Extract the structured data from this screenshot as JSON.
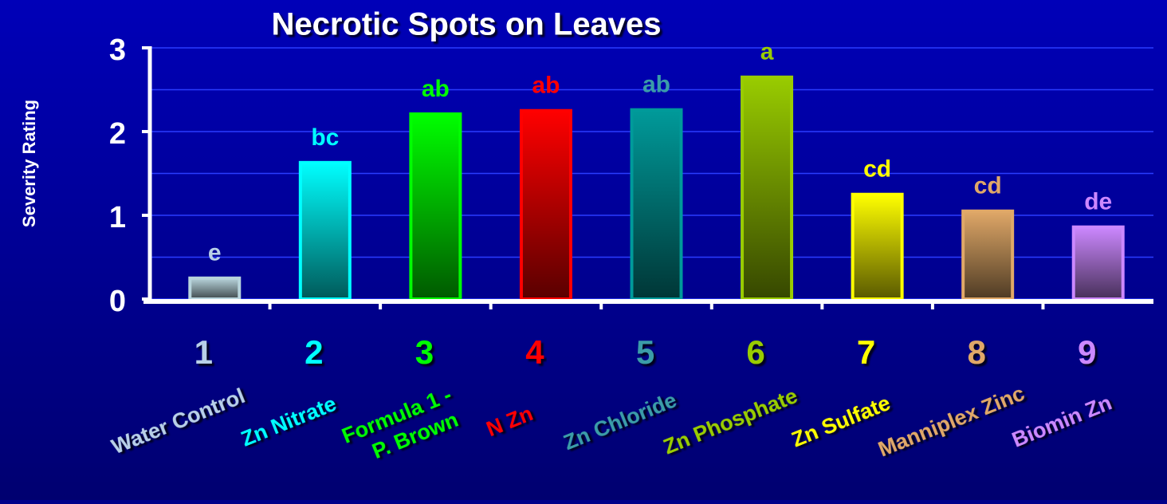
{
  "chart_data": {
    "type": "bar",
    "title": "Necrotic Spots on Leaves",
    "y_label": "Severity Rating",
    "categories": [
      "1",
      "2",
      "3",
      "4",
      "5",
      "6",
      "7",
      "8",
      "9"
    ],
    "names": [
      [
        "Water Control"
      ],
      [
        "Zn Nitrate"
      ],
      [
        "Formula 1 -",
        "P. Brown"
      ],
      [
        "N Zn"
      ],
      [
        "Zn Chloride"
      ],
      [
        "Zn Phosphate"
      ],
      [
        "Zn Sulfate"
      ],
      [
        "Manniplex Zinc"
      ],
      [
        "Biomin Zn"
      ]
    ],
    "values": [
      0.25,
      1.63,
      2.21,
      2.25,
      2.26,
      2.65,
      1.25,
      1.05,
      0.86
    ],
    "annotations": [
      "e",
      "bc",
      "ab",
      "ab",
      "ab",
      "a",
      "cd",
      "cd",
      "de"
    ],
    "colors": [
      "#b8d4dc",
      "#00ffff",
      "#00ff00",
      "#ff0000",
      "#009a9a",
      "#99cc00",
      "#ffff00",
      "#e0a868",
      "#cc88ff"
    ],
    "label_colors": [
      "#b8d0e8",
      "#00ffff",
      "#00ff00",
      "#ff0000",
      "#3a9ca8",
      "#99cc00",
      "#ffff00",
      "#e0a868",
      "#cc88ff"
    ],
    "ylim": [
      0,
      3
    ],
    "yticks": [
      0,
      1,
      2,
      3
    ],
    "yminorticks": [
      0.5,
      1.5,
      2.5
    ],
    "grid": true
  }
}
